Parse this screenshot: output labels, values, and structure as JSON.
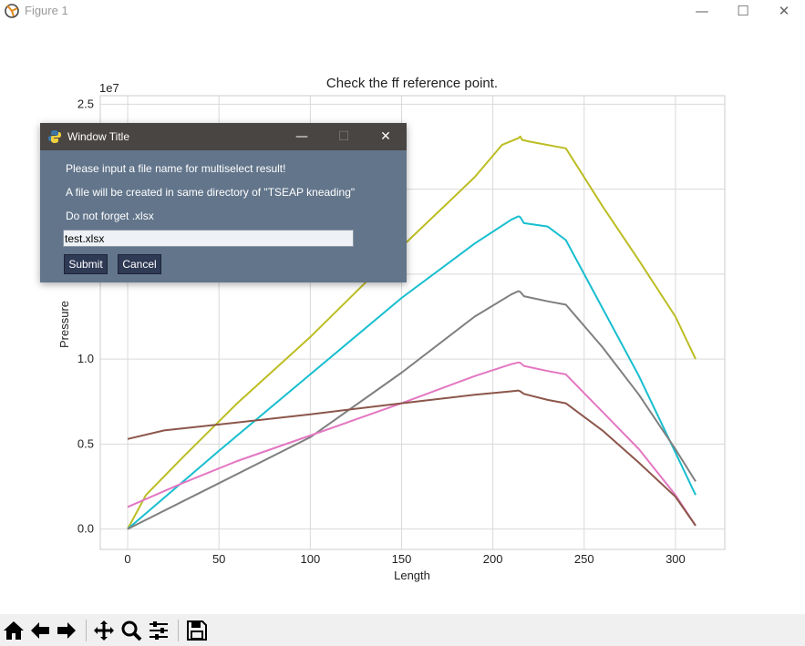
{
  "window": {
    "title": "Figure 1",
    "controls": {
      "minimize": "—",
      "maximize": "☐",
      "close": "✕"
    }
  },
  "chart_data": {
    "type": "line",
    "title": "Check the ff reference point.",
    "xlabel": "Length",
    "ylabel": "Pressure",
    "y_offset_text": "1e7",
    "xlim": [
      -15,
      327
    ],
    "ylim": [
      -1200000,
      25500000
    ],
    "x_ticks": [
      0,
      50,
      100,
      150,
      200,
      250,
      300
    ],
    "x_tick_labels": [
      "0",
      "50",
      "100",
      "150",
      "200",
      "250",
      "300"
    ],
    "y_ticks": [
      0,
      5000000,
      10000000,
      15000000,
      20000000,
      25000000
    ],
    "y_tick_labels": [
      "0.0",
      "0.5",
      "1.0",
      "1.5",
      "2.0",
      "2.5"
    ],
    "grid": true,
    "series": [
      {
        "color": "#bcbd22",
        "x": [
          0,
          10,
          30,
          60,
          100,
          150,
          190,
          205,
          214,
          215,
          216,
          220,
          240,
          260,
          280,
          300,
          311
        ],
        "y": [
          0,
          2000000,
          4200000,
          7400000,
          11300000,
          16600000,
          20700000,
          22600000,
          23000000,
          23100000,
          22900000,
          22800000,
          22400000,
          19000000,
          15800000,
          12500000,
          10000000
        ]
      },
      {
        "color": "#17becf",
        "x": [
          0,
          50,
          100,
          150,
          190,
          210,
          214,
          215,
          217,
          230,
          240,
          260,
          280,
          300,
          311
        ],
        "y": [
          0,
          4600000,
          9100000,
          13600000,
          16800000,
          18200000,
          18400000,
          18350000,
          18000000,
          17800000,
          17000000,
          13000000,
          9000000,
          4500000,
          2000000
        ]
      },
      {
        "color": "#7f7f7f",
        "x": [
          0,
          50,
          100,
          150,
          190,
          210,
          214,
          215,
          217,
          230,
          240,
          260,
          280,
          300,
          311
        ],
        "y": [
          0,
          2700000,
          5400000,
          9200000,
          12500000,
          13800000,
          14000000,
          13950000,
          13700000,
          13400000,
          13200000,
          10700000,
          7900000,
          4700000,
          2800000
        ]
      },
      {
        "color": "#e377c2",
        "x": [
          0,
          30,
          60,
          100,
          150,
          190,
          210,
          214,
          215,
          217,
          230,
          240,
          260,
          280,
          300,
          311
        ],
        "y": [
          1300000,
          2700000,
          4000000,
          5500000,
          7400000,
          9000000,
          9700000,
          9800000,
          9780000,
          9600000,
          9300000,
          9100000,
          6900000,
          4700000,
          2000000,
          200000
        ]
      },
      {
        "color": "#8c564b",
        "x": [
          0,
          20,
          50,
          100,
          150,
          190,
          210,
          214,
          215,
          217,
          230,
          240,
          260,
          280,
          300,
          311
        ],
        "y": [
          5300000,
          5800000,
          6150000,
          6750000,
          7400000,
          7900000,
          8100000,
          8150000,
          8100000,
          7950000,
          7600000,
          7400000,
          5800000,
          3900000,
          1900000,
          200000
        ]
      }
    ]
  },
  "dialog": {
    "title": "Window Title",
    "controls": {
      "minimize": "—",
      "maximize": "☐",
      "close": "✕"
    },
    "message_1": "Please input a file name for multiselect result!",
    "message_2": "A file will be created in same directory of \"TSEAP kneading\"",
    "message_3": "Do not forget .xlsx",
    "input_value": "test.xlsx",
    "submit_label": "Submit",
    "cancel_label": "Cancel"
  },
  "toolbar": {
    "icons": [
      "home-icon",
      "back-arrow-icon",
      "forward-arrow-icon",
      "pan-icon",
      "zoom-icon",
      "configure-subplots-icon",
      "save-icon"
    ]
  }
}
